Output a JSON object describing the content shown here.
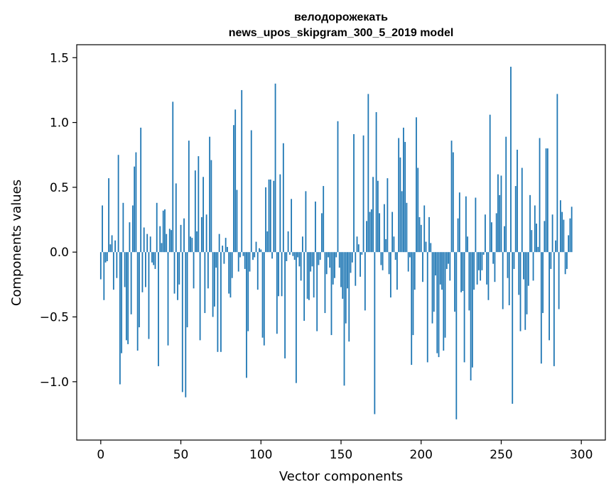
{
  "chart_data": {
    "type": "bar",
    "title_lines": [
      "велодорожекать",
      "news_upos_skipgram_300_5_2019 model"
    ],
    "xlabel": "Vector components",
    "ylabel": "Components values",
    "xlim": [
      -15,
      315
    ],
    "ylim": [
      -1.45,
      1.6
    ],
    "xticks": [
      {
        "value": 0,
        "label": "0"
      },
      {
        "value": 50,
        "label": "50"
      },
      {
        "value": 100,
        "label": "100"
      },
      {
        "value": 150,
        "label": "150"
      },
      {
        "value": 200,
        "label": "200"
      },
      {
        "value": 250,
        "label": "250"
      },
      {
        "value": 300,
        "label": "300"
      }
    ],
    "yticks": [
      {
        "value": -1.0,
        "label": "−1.0"
      },
      {
        "value": -0.5,
        "label": "−0.5"
      },
      {
        "value": 0.0,
        "label": "0.0"
      },
      {
        "value": 0.5,
        "label": "0.5"
      },
      {
        "value": 1.0,
        "label": "1.0"
      },
      {
        "value": 1.5,
        "label": "1.5"
      }
    ],
    "bar_color": "#1f77b4",
    "grid": false,
    "values": [
      -0.21,
      0.36,
      -0.37,
      -0.08,
      -0.07,
      0.57,
      0.06,
      0.13,
      -0.29,
      0.09,
      -0.2,
      0.75,
      -1.02,
      -0.78,
      0.38,
      -0.27,
      -0.68,
      -0.71,
      0.23,
      -0.48,
      0.36,
      0.66,
      0.77,
      -0.76,
      -0.58,
      0.96,
      -0.31,
      0.19,
      -0.27,
      0.14,
      -0.67,
      0.12,
      -0.08,
      -0.1,
      -0.13,
      0.38,
      -0.88,
      0.2,
      0.07,
      0.32,
      0.33,
      0.14,
      -0.72,
      0.18,
      0.17,
      1.16,
      -0.32,
      0.53,
      -0.37,
      -0.25,
      0.21,
      -1.08,
      0.26,
      -1.12,
      -0.58,
      0.86,
      0.12,
      0.11,
      -0.28,
      0.63,
      0.16,
      0.74,
      -0.68,
      0.27,
      0.58,
      -0.47,
      0.29,
      -0.28,
      0.89,
      0.71,
      -0.5,
      -0.42,
      -0.12,
      -0.77,
      0.14,
      -0.77,
      0.05,
      -0.09,
      0.11,
      0.04,
      -0.32,
      -0.35,
      -0.2,
      0.98,
      1.1,
      0.48,
      -0.15,
      -0.04,
      1.25,
      -0.03,
      -0.13,
      -0.97,
      -0.61,
      -0.15,
      0.94,
      -0.06,
      -0.04,
      0.08,
      -0.29,
      0.03,
      0.02,
      -0.66,
      -0.72,
      0.5,
      0.16,
      0.56,
      0.56,
      -0.05,
      0.55,
      1.3,
      -0.63,
      -0.34,
      0.6,
      -0.34,
      0.84,
      -0.82,
      -0.07,
      0.16,
      -0.02,
      0.41,
      -0.03,
      -0.06,
      -1.01,
      -0.04,
      -0.11,
      -0.22,
      0.12,
      -0.53,
      0.47,
      -0.36,
      -0.37,
      -0.15,
      -0.11,
      -0.35,
      0.39,
      -0.61,
      -0.1,
      -0.06,
      0.3,
      0.51,
      -0.47,
      -0.17,
      -0.04,
      -0.12,
      -0.64,
      -0.25,
      -0.2,
      -0.04,
      1.01,
      -0.12,
      -0.27,
      -0.36,
      -1.03,
      -0.55,
      -0.28,
      -0.69,
      -0.16,
      -0.08,
      0.91,
      -0.26,
      0.12,
      0.06,
      -0.19,
      -0.02,
      0.9,
      -0.45,
      0.24,
      1.22,
      0.31,
      0.33,
      0.58,
      -1.25,
      1.08,
      0.55,
      0.3,
      -0.1,
      -0.14,
      0.37,
      0.1,
      0.57,
      -0.17,
      -0.35,
      0.31,
      0.12,
      -0.06,
      -0.29,
      0.88,
      0.73,
      0.47,
      0.96,
      0.85,
      0.38,
      -0.15,
      -0.04,
      -0.87,
      -0.64,
      -0.29,
      1.04,
      0.65,
      0.27,
      0.21,
      -0.23,
      0.36,
      0.08,
      -0.85,
      0.27,
      0.07,
      -0.55,
      -0.46,
      -0.18,
      -0.78,
      -0.81,
      -0.25,
      -0.29,
      -0.76,
      -0.66,
      -0.13,
      -0.09,
      -0.22,
      0.86,
      0.77,
      -0.46,
      -1.29,
      0.26,
      0.46,
      -0.31,
      -0.3,
      -0.85,
      0.43,
      0.12,
      -0.45,
      -0.99,
      -0.89,
      -0.29,
      0.42,
      -0.25,
      -0.14,
      -0.22,
      -0.14,
      -0.02,
      0.29,
      -0.25,
      -0.37,
      1.06,
      0.23,
      -0.09,
      -0.23,
      0.3,
      0.6,
      0.44,
      0.59,
      -0.44,
      0.2,
      0.89,
      -0.2,
      -0.41,
      1.43,
      -1.17,
      -0.13,
      0.51,
      0.79,
      -0.33,
      -0.61,
      0.65,
      -0.21,
      -0.6,
      -0.48,
      -0.26,
      0.44,
      0.17,
      -0.22,
      0.36,
      0.22,
      0.04,
      0.88,
      -0.86,
      -0.47,
      0.24,
      0.8,
      0.8,
      -0.68,
      -0.13,
      0.29,
      -0.88,
      0.09,
      1.22,
      -0.44,
      0.4,
      0.31,
      0.25,
      -0.17,
      -0.13,
      0.13,
      0.26,
      0.35
    ]
  }
}
